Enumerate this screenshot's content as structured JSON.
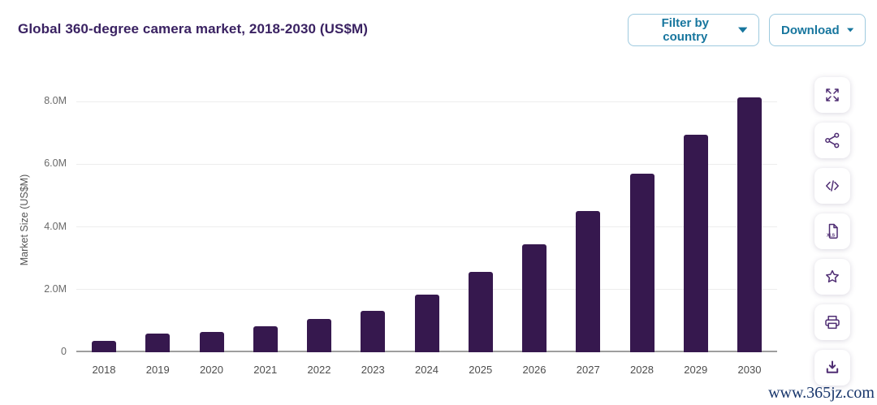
{
  "header": {
    "title": "Global 360-degree camera market, 2018-2030 (US$M)",
    "filter_button": {
      "label": "Filter by country",
      "icon": "chevron-down-icon"
    },
    "download_button": {
      "label": "Download",
      "icon": "chevron-down-icon"
    }
  },
  "chart_data": {
    "type": "bar",
    "title": "Global 360-degree camera market, 2018-2030 (US$M)",
    "xlabel": "",
    "ylabel": "Market Size (US$M)",
    "categories": [
      "2018",
      "2019",
      "2020",
      "2021",
      "2022",
      "2023",
      "2024",
      "2025",
      "2026",
      "2027",
      "2028",
      "2029",
      "2030"
    ],
    "values": [
      0.37,
      0.6,
      0.66,
      0.83,
      1.06,
      1.33,
      1.84,
      2.56,
      3.45,
      4.52,
      5.7,
      6.95,
      8.13
    ],
    "values_note": "US$M millions, estimated from bar heights",
    "ylim": [
      0,
      8.4
    ],
    "yticks": [
      {
        "value": 0,
        "label": "0"
      },
      {
        "value": 2,
        "label": "2.0M"
      },
      {
        "value": 4,
        "label": "4.0M"
      },
      {
        "value": 6,
        "label": "6.0M"
      },
      {
        "value": 8,
        "label": "8.0M"
      }
    ],
    "grid": "horizontal",
    "legend": "none",
    "bar_color": "#36184e"
  },
  "icon_rail": {
    "items": [
      {
        "name": "expand-icon"
      },
      {
        "name": "share-icon"
      },
      {
        "name": "embed-code-icon"
      },
      {
        "name": "xls-export-icon"
      },
      {
        "name": "favorite-star-icon"
      },
      {
        "name": "print-icon"
      },
      {
        "name": "download-icon"
      }
    ]
  },
  "watermark": {
    "text": "www.365jz.com"
  },
  "colors": {
    "title_purple": "#3a2262",
    "bar_purple": "#36184e",
    "icon_purple": "#4f2d73",
    "button_teal": "#17769e",
    "button_border": "#9ecadf",
    "gridline": "#ededed",
    "axis_line": "#9e9e9e",
    "tick_text": "#4d4d4d",
    "watermark_blue": "#17356b"
  }
}
